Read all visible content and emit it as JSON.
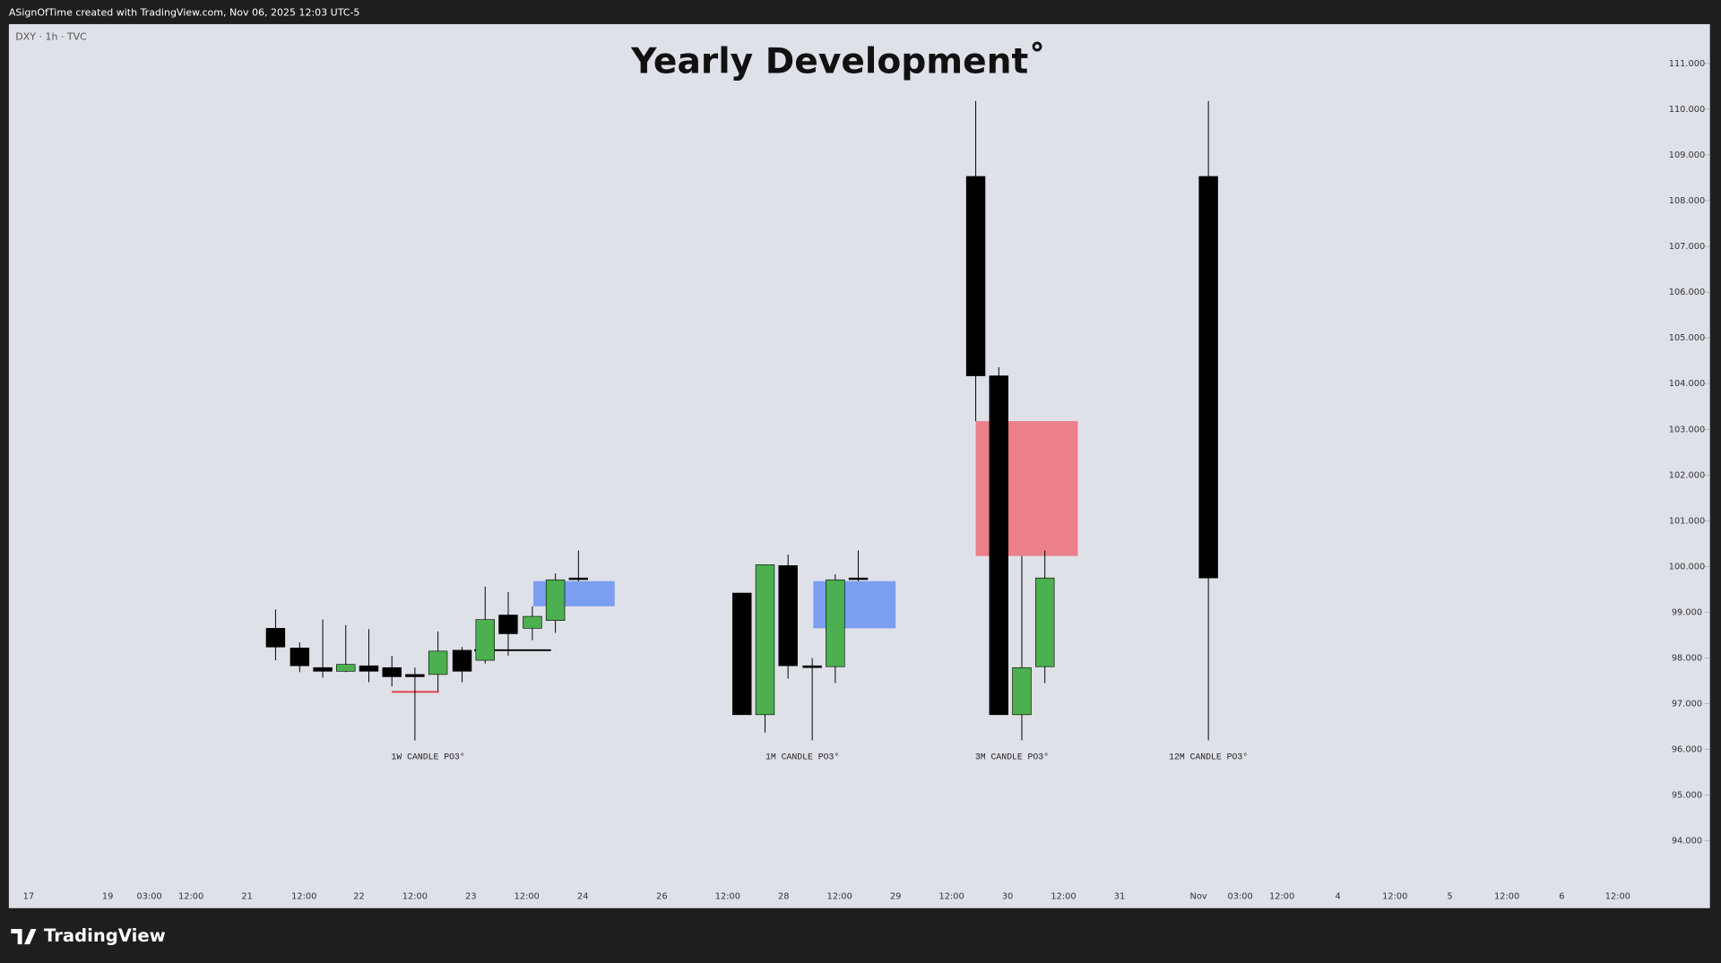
{
  "header": "ASignOfTime created with TradingView.com, Nov 06, 2025 12:03 UTC-5",
  "footer_logo": "TradingView",
  "chart_data": {
    "type": "candlestick",
    "title": "Yearly Development˚",
    "symbol": "DXY · 1h · TVC",
    "ylim": [
      92.53,
      111.86
    ],
    "yticks": [
      {
        "value": 94,
        "label": "94.000"
      },
      {
        "value": 95,
        "label": "95.000"
      },
      {
        "value": 96,
        "label": "96.000"
      },
      {
        "value": 97,
        "label": "97.000"
      },
      {
        "value": 98,
        "label": "98.000"
      },
      {
        "value": 99,
        "label": "99.000"
      },
      {
        "value": 100,
        "label": "100.000"
      },
      {
        "value": 101,
        "label": "101.000"
      },
      {
        "value": 102,
        "label": "102.000"
      },
      {
        "value": 103,
        "label": "103.000"
      },
      {
        "value": 104,
        "label": "104.000"
      },
      {
        "value": 105,
        "label": "105.000"
      },
      {
        "value": 106,
        "label": "106.000"
      },
      {
        "value": 107,
        "label": "107.000"
      },
      {
        "value": 108,
        "label": "108.000"
      },
      {
        "value": 109,
        "label": "109.000"
      },
      {
        "value": 110,
        "label": "110.000"
      },
      {
        "value": 111,
        "label": "111.000"
      }
    ],
    "xticks": [
      "17",
      "19",
      "03:00",
      "12:00",
      "21",
      "12:00",
      "22",
      "12:00",
      "23",
      "12:00",
      "24",
      "26",
      "12:00",
      "28",
      "12:00",
      "29",
      "12:00",
      "30",
      "12:00",
      "31",
      "Nov",
      "03:00",
      "12:00",
      "4",
      "12:00",
      "5",
      "12:00",
      "6",
      "12:00"
    ],
    "up_color": "#4caf50",
    "down_color": "#000000",
    "candles": [
      {
        "open": 98.65,
        "high": 99.06,
        "low": 97.95,
        "close": 98.24
      },
      {
        "open": 98.22,
        "high": 98.34,
        "low": 97.69,
        "close": 97.83
      },
      {
        "open": 97.79,
        "high": 98.84,
        "low": 97.57,
        "close": 97.71
      },
      {
        "open": 97.71,
        "high": 98.72,
        "low": 97.69,
        "close": 97.86
      },
      {
        "open": 97.83,
        "high": 98.63,
        "low": 97.47,
        "close": 97.71
      },
      {
        "open": 97.79,
        "high": 98.05,
        "low": 97.38,
        "close": 97.59
      },
      {
        "open": 97.64,
        "high": 97.79,
        "low": 96.2,
        "close": 97.59
      },
      {
        "open": 97.64,
        "high": 98.58,
        "low": 97.28,
        "close": 98.15
      },
      {
        "open": 98.17,
        "high": 98.24,
        "low": 97.47,
        "close": 97.71
      },
      {
        "open": 97.95,
        "high": 99.56,
        "low": 97.88,
        "close": 98.84
      },
      {
        "open": 98.94,
        "high": 99.44,
        "low": 98.05,
        "close": 98.53
      },
      {
        "open": 98.65,
        "high": 99.13,
        "low": 98.39,
        "close": 98.91
      },
      {
        "open": 98.82,
        "high": 99.85,
        "low": 98.55,
        "close": 99.71
      },
      {
        "open": 99.75,
        "high": 100.35,
        "low": 99.68,
        "close": 99.75
      },
      {
        "open": 99.42,
        "high": 99.42,
        "low": 96.76,
        "close": 96.76
      },
      {
        "open": 96.76,
        "high": 100.04,
        "low": 96.37,
        "close": 100.04
      },
      {
        "open": 100.02,
        "high": 100.26,
        "low": 97.55,
        "close": 97.83
      },
      {
        "open": 97.83,
        "high": 98.0,
        "low": 96.2,
        "close": 97.79
      },
      {
        "open": 97.81,
        "high": 99.83,
        "low": 97.45,
        "close": 99.71
      },
      {
        "open": 99.75,
        "high": 100.35,
        "low": 99.68,
        "close": 99.75
      },
      {
        "open": 108.53,
        "high": 110.18,
        "low": 103.18,
        "close": 104.17
      },
      {
        "open": 104.17,
        "high": 104.36,
        "low": 96.76,
        "close": 96.76
      },
      {
        "open": 96.76,
        "high": 100.23,
        "low": 96.2,
        "close": 97.79
      },
      {
        "open": 97.81,
        "high": 100.35,
        "low": 97.45,
        "close": 99.75
      },
      {
        "open": 108.53,
        "high": 110.18,
        "low": 96.2,
        "close": 99.75
      }
    ],
    "zones": [
      {
        "top": 99.68,
        "bottom": 99.13,
        "color": "#7b9ef0"
      },
      {
        "top": 99.68,
        "bottom": 98.65,
        "color": "#7b9ef0"
      },
      {
        "top": 103.18,
        "bottom": 100.23,
        "color": "#eb7f8a"
      }
    ],
    "levels": [
      {
        "value": 97.26,
        "color": "#e53945"
      },
      {
        "value": 98.17,
        "color": "#000000"
      }
    ],
    "annotations": [
      "1W CANDLE PO3°",
      "1M CANDLE PO3°",
      "3M CANDLE PO3°",
      "12M CANDLE PO3°"
    ]
  }
}
